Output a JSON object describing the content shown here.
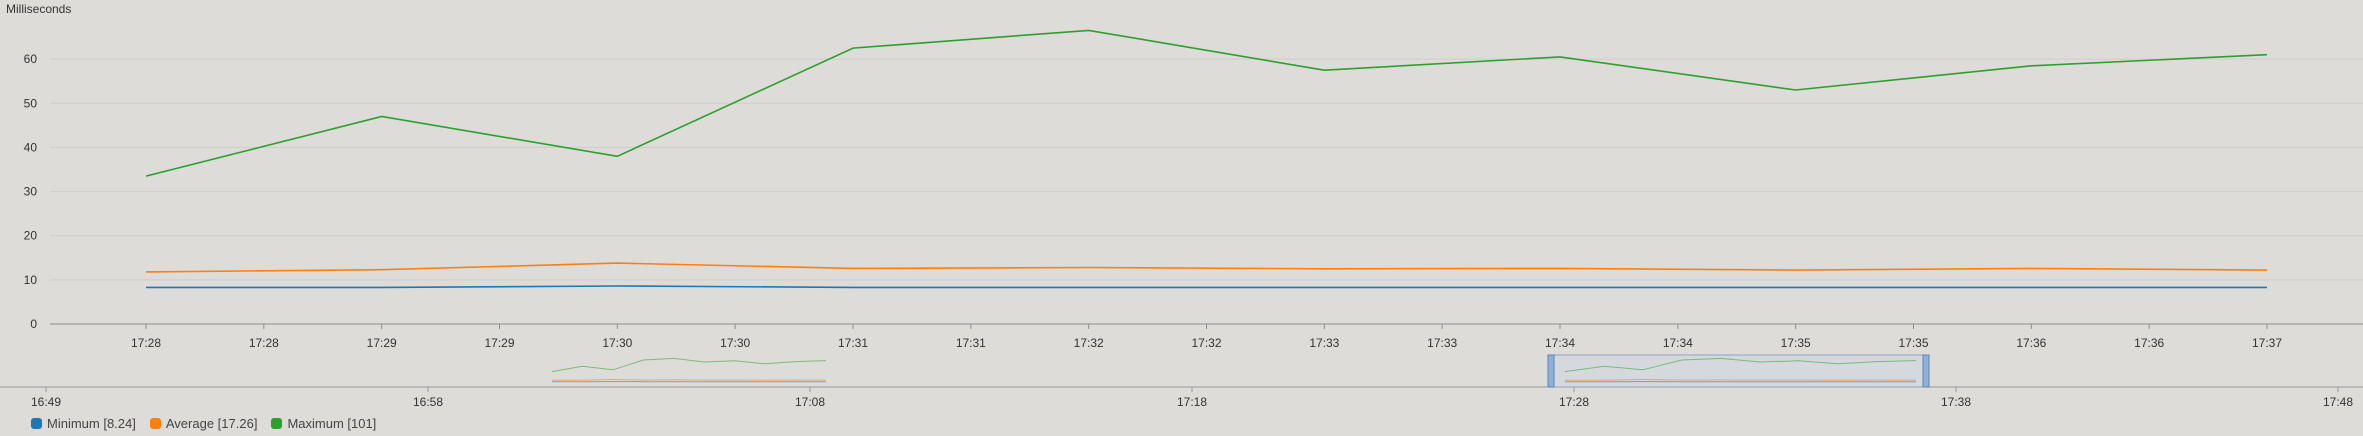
{
  "chart_data": {
    "type": "line",
    "ylabel": "Milliseconds",
    "ylim": [
      0,
      70
    ],
    "yticks": [
      0,
      10,
      20,
      30,
      40,
      50,
      60
    ],
    "x_tick_labels": [
      "17:28",
      "17:28",
      "17:29",
      "17:29",
      "17:30",
      "17:30",
      "17:31",
      "17:31",
      "17:32",
      "17:32",
      "17:33",
      "17:33",
      "17:34",
      "17:34",
      "17:35",
      "17:35",
      "17:36",
      "17:36",
      "17:37"
    ],
    "x": [
      "17:28",
      "17:29",
      "17:30",
      "17:31",
      "17:32",
      "17:33",
      "17:34",
      "17:35",
      "17:36",
      "17:37"
    ],
    "series": [
      {
        "name": "Minimum [8.24]",
        "color": "#1f77b4",
        "values": [
          8.3,
          8.3,
          8.6,
          8.3,
          8.3,
          8.3,
          8.3,
          8.3,
          8.3,
          8.3
        ]
      },
      {
        "name": "Average [17.26]",
        "color": "#ff7f0e",
        "values": [
          11.8,
          12.3,
          13.8,
          12.6,
          12.8,
          12.5,
          12.6,
          12.2,
          12.6,
          12.2
        ]
      },
      {
        "name": "Maximum [101]",
        "color": "#2ca02c",
        "values": [
          33.5,
          47,
          38,
          62.5,
          66.5,
          57.5,
          60.5,
          53,
          58.5,
          61
        ]
      }
    ],
    "grid": true,
    "legend": "bottom-left",
    "navigator": {
      "tick_labels": [
        "16:49",
        "16:58",
        "17:08",
        "17:18",
        "17:28",
        "17:38",
        "17:48"
      ],
      "selected_range": [
        "17:28",
        "17:37"
      ]
    }
  }
}
